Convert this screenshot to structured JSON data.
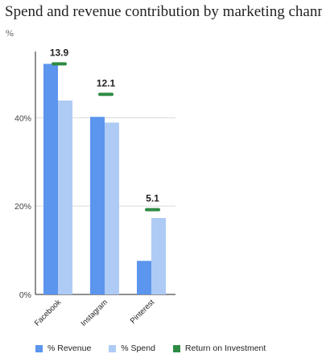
{
  "chart_data": {
    "type": "bar",
    "title": "Spend and revenue contribution by marketing channel",
    "subtitle": "%",
    "categories": [
      "Facebook",
      "Instagram",
      "Pinterest"
    ],
    "series": [
      {
        "name": "% Revenue",
        "values": [
          52.2,
          40.2,
          7.6
        ],
        "color": "#5b95ee"
      },
      {
        "name": "% Spend",
        "values": [
          43.9,
          38.9,
          17.3
        ],
        "color": "#aecbf5"
      }
    ],
    "roi": {
      "name": "Return on Investment",
      "values": [
        52.2,
        45.3,
        19.2
      ],
      "labels": [
        "13.9",
        "12.1",
        "5.1"
      ],
      "color": "#2e8b43"
    },
    "y_ticks": [
      {
        "value": 0,
        "label": "0%"
      },
      {
        "value": 20,
        "label": "20%"
      },
      {
        "value": 40,
        "label": "40%"
      }
    ],
    "ylim": [
      0,
      55
    ],
    "grid": true,
    "legend_position": "bottom"
  }
}
